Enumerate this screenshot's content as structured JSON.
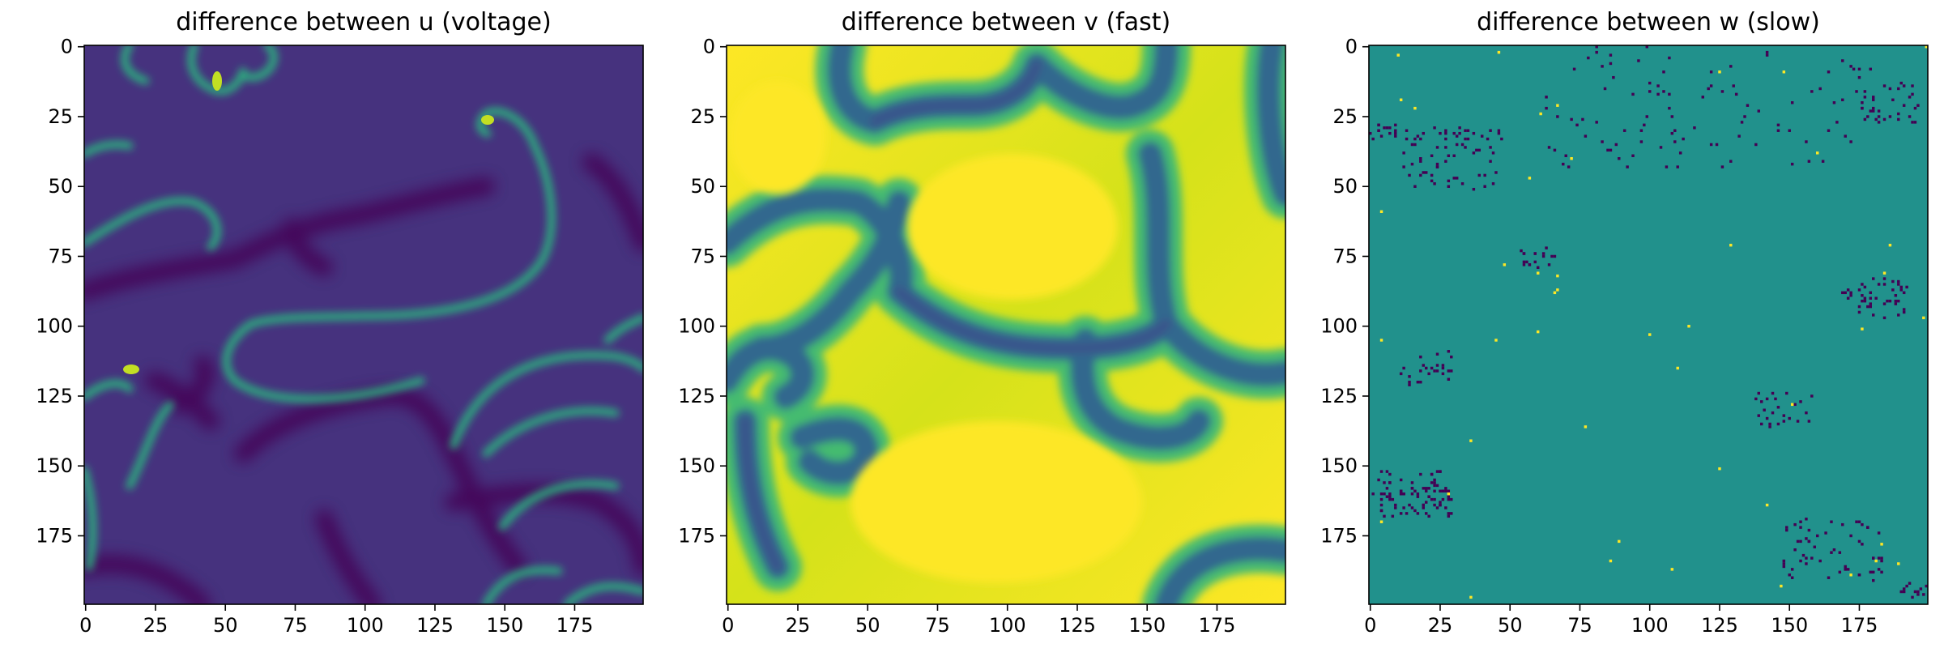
{
  "chart_data": [
    {
      "type": "heatmap",
      "title": "difference between u (voltage)",
      "colormap": "viridis",
      "xlim": [
        0,
        199
      ],
      "ylim": [
        199,
        0
      ],
      "x_ticks": [
        0,
        25,
        50,
        75,
        100,
        125,
        150,
        175
      ],
      "y_ticks": [
        0,
        25,
        50,
        75,
        100,
        125,
        150,
        175
      ],
      "x_tick_labels": [
        "0",
        "25",
        "50",
        "75",
        "100",
        "125",
        "150",
        "175"
      ],
      "y_tick_labels": [
        "0",
        "25",
        "50",
        "75",
        "100",
        "125",
        "150",
        "175"
      ],
      "background_color": "#46327e",
      "wave_color": "#2cb17e",
      "tip_color": "#c2df23",
      "trough_color": "#440154"
    },
    {
      "type": "heatmap",
      "title": "difference between v (fast)",
      "colormap": "viridis",
      "xlim": [
        0,
        199
      ],
      "ylim": [
        199,
        0
      ],
      "x_ticks": [
        0,
        25,
        50,
        75,
        100,
        125,
        150,
        175
      ],
      "y_ticks": [
        0,
        25,
        50,
        75,
        100,
        125,
        150,
        175
      ],
      "x_tick_labels": [
        "0",
        "25",
        "50",
        "75",
        "100",
        "125",
        "150",
        "175"
      ],
      "y_tick_labels": [
        "0",
        "25",
        "50",
        "75",
        "100",
        "125",
        "150",
        "175"
      ],
      "background_color": "#fde725",
      "band_color": "#31688e",
      "core_color": "#3b528b",
      "edge_color": "#35b779"
    },
    {
      "type": "heatmap",
      "title": "difference between w (slow)",
      "colormap": "viridis",
      "xlim": [
        0,
        199
      ],
      "ylim": [
        199,
        0
      ],
      "x_ticks": [
        0,
        25,
        50,
        75,
        100,
        125,
        150,
        175
      ],
      "y_ticks": [
        0,
        25,
        50,
        75,
        100,
        125,
        150,
        175
      ],
      "x_tick_labels": [
        "0",
        "25",
        "50",
        "75",
        "100",
        "125",
        "150",
        "175"
      ],
      "y_tick_labels": [
        "0",
        "25",
        "50",
        "75",
        "100",
        "125",
        "150",
        "175"
      ],
      "background_color": "#21918c",
      "low_color": "#440154",
      "high_color": "#fde725"
    }
  ]
}
